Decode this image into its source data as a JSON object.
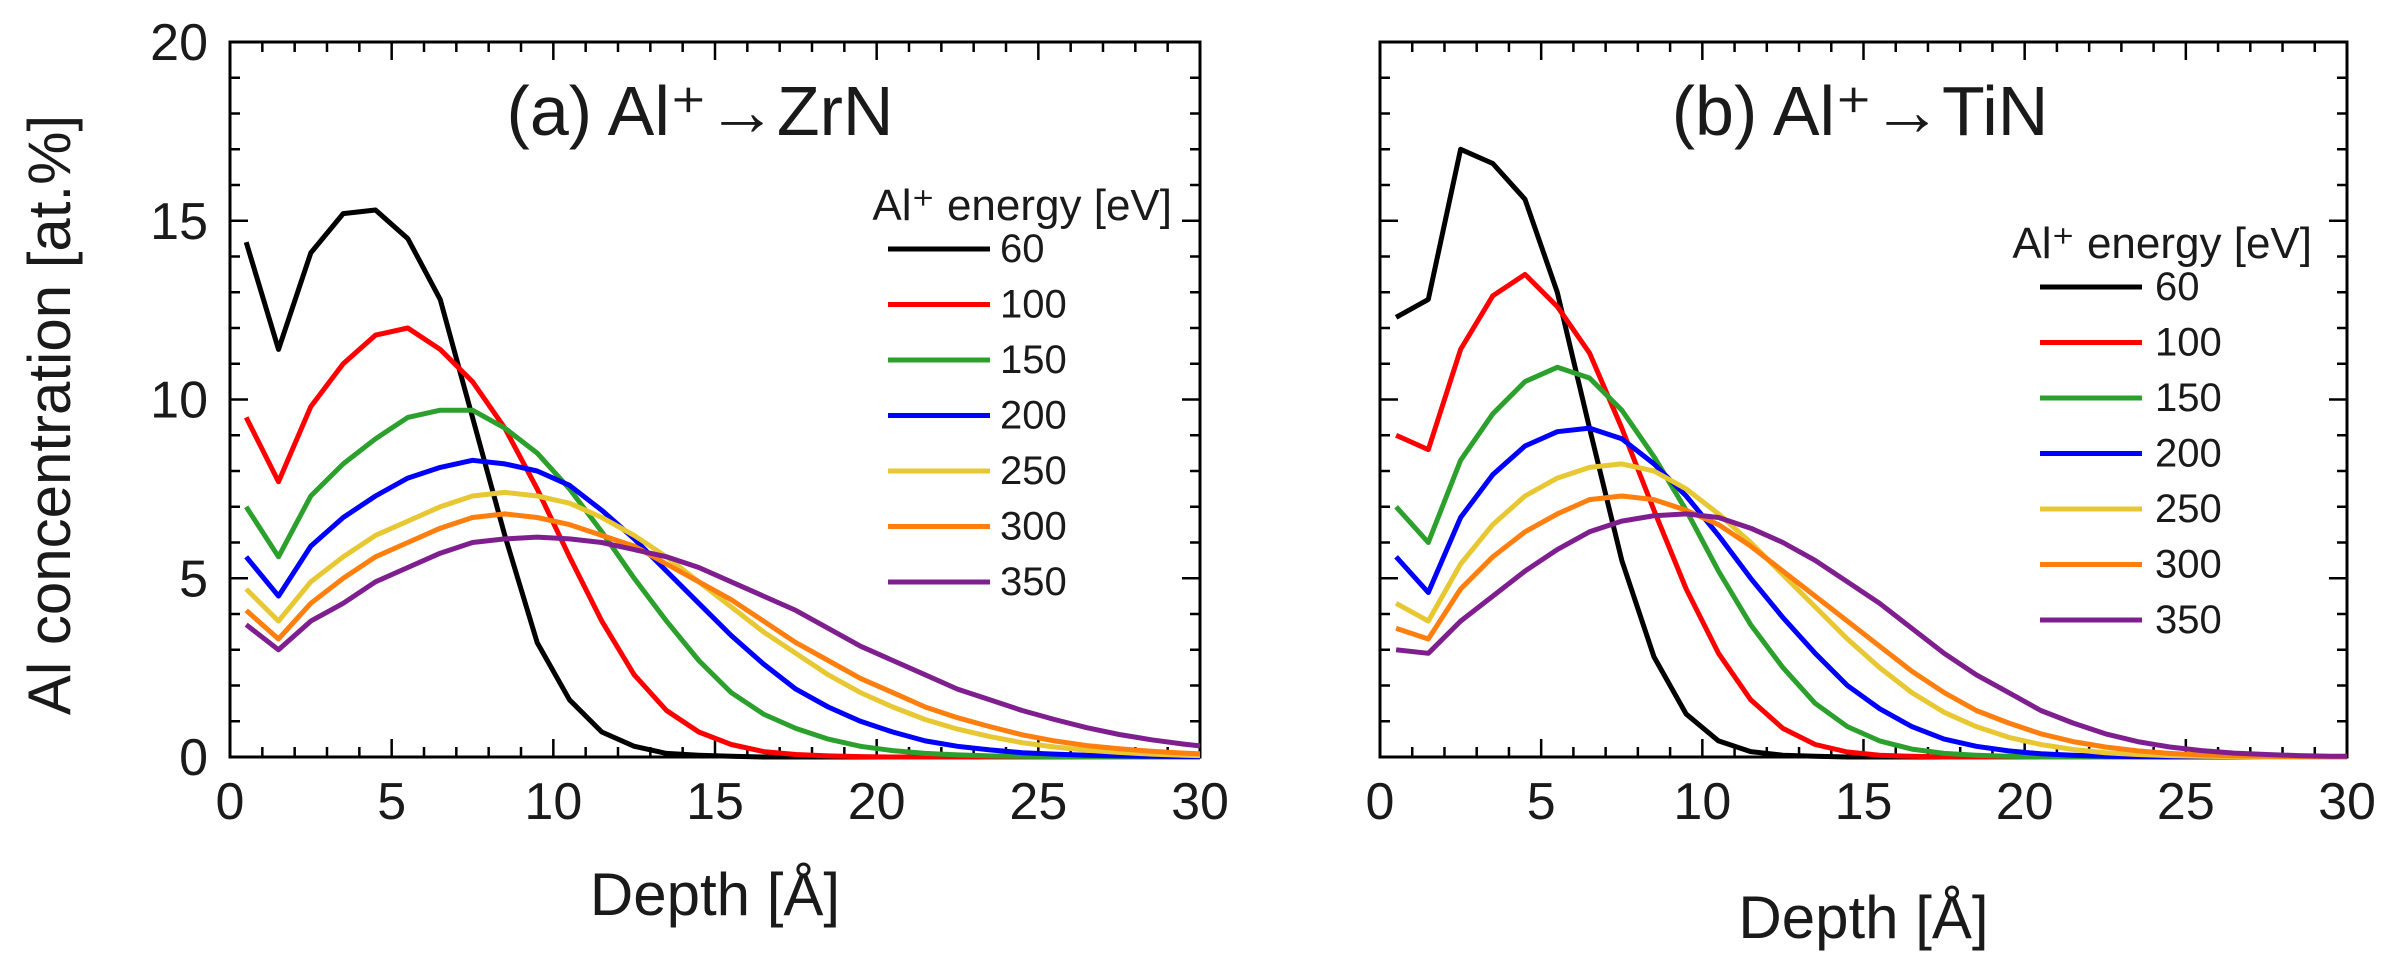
{
  "figure": {
    "ylabel": "Al concentration [at.%]",
    "xlabel": "Depth [Å]"
  },
  "chart_data": [
    {
      "type": "line",
      "title": "(a) Al⁺→ZrN",
      "xlabel": "Depth [Å]",
      "ylabel": "Al concentration [at.%]",
      "xlim": [
        0,
        30
      ],
      "ylim": [
        0,
        20
      ],
      "xticks": [
        "0",
        "5",
        "10",
        "15",
        "20",
        "25",
        "30"
      ],
      "yticks": [
        "0",
        "5",
        "10",
        "15",
        "20"
      ],
      "legend_title": "Al⁺ energy [eV]",
      "legend_position": "right",
      "x": [
        0.5,
        1.5,
        2.5,
        3.5,
        4.5,
        5.5,
        6.5,
        7.5,
        8.5,
        9.5,
        10.5,
        11.5,
        12.5,
        13.5,
        14.5,
        15.5,
        16.5,
        17.5,
        18.5,
        19.5,
        20.5,
        21.5,
        22.5,
        23.5,
        24.5,
        25.5,
        26.5,
        27.5,
        28.5,
        29.5,
        30.0
      ],
      "series": [
        {
          "name": "60",
          "color": "#000000",
          "values": [
            14.4,
            11.4,
            14.1,
            15.2,
            15.3,
            14.5,
            12.8,
            9.5,
            6.2,
            3.2,
            1.6,
            0.7,
            0.3,
            0.1,
            0.05,
            0.02,
            0,
            0,
            0,
            0,
            0,
            0,
            0,
            0,
            0,
            0,
            0,
            0,
            0,
            0,
            0
          ]
        },
        {
          "name": "100",
          "color": "#ff0000",
          "values": [
            9.5,
            7.7,
            9.8,
            11.0,
            11.8,
            12.0,
            11.4,
            10.5,
            9.2,
            7.5,
            5.6,
            3.8,
            2.3,
            1.3,
            0.7,
            0.35,
            0.15,
            0.07,
            0.03,
            0.01,
            0,
            0,
            0,
            0,
            0,
            0,
            0,
            0,
            0,
            0,
            0
          ]
        },
        {
          "name": "150",
          "color": "#2ca02c",
          "values": [
            7.0,
            5.6,
            7.3,
            8.2,
            8.9,
            9.5,
            9.7,
            9.7,
            9.2,
            8.5,
            7.5,
            6.3,
            5.0,
            3.8,
            2.7,
            1.8,
            1.2,
            0.8,
            0.5,
            0.3,
            0.18,
            0.1,
            0.06,
            0.03,
            0.02,
            0.01,
            0,
            0,
            0,
            0,
            0
          ]
        },
        {
          "name": "200",
          "color": "#0000ff",
          "values": [
            5.6,
            4.5,
            5.9,
            6.7,
            7.3,
            7.8,
            8.1,
            8.3,
            8.2,
            8.0,
            7.6,
            6.9,
            6.1,
            5.2,
            4.3,
            3.4,
            2.6,
            1.9,
            1.4,
            1.0,
            0.7,
            0.45,
            0.3,
            0.2,
            0.12,
            0.08,
            0.05,
            0.03,
            0.02,
            0.01,
            0.01
          ]
        },
        {
          "name": "250",
          "color": "#e8c832",
          "values": [
            4.7,
            3.8,
            4.9,
            5.6,
            6.2,
            6.6,
            7.0,
            7.3,
            7.4,
            7.3,
            7.1,
            6.7,
            6.2,
            5.6,
            4.9,
            4.2,
            3.5,
            2.9,
            2.3,
            1.8,
            1.4,
            1.05,
            0.78,
            0.57,
            0.4,
            0.28,
            0.19,
            0.13,
            0.08,
            0.05,
            0.04
          ]
        },
        {
          "name": "300",
          "color": "#ff7f0e",
          "values": [
            4.1,
            3.3,
            4.3,
            5.0,
            5.6,
            6.0,
            6.4,
            6.7,
            6.8,
            6.7,
            6.5,
            6.2,
            5.9,
            5.4,
            4.9,
            4.4,
            3.8,
            3.2,
            2.7,
            2.2,
            1.8,
            1.4,
            1.1,
            0.85,
            0.62,
            0.45,
            0.32,
            0.23,
            0.16,
            0.11,
            0.09
          ]
        },
        {
          "name": "350",
          "color": "#7f1f8f",
          "values": [
            3.7,
            3.0,
            3.8,
            4.3,
            4.9,
            5.3,
            5.7,
            6.0,
            6.1,
            6.15,
            6.1,
            6.0,
            5.8,
            5.6,
            5.3,
            4.9,
            4.5,
            4.1,
            3.6,
            3.1,
            2.7,
            2.3,
            1.9,
            1.6,
            1.3,
            1.05,
            0.82,
            0.63,
            0.48,
            0.36,
            0.31
          ]
        }
      ]
    },
    {
      "type": "line",
      "title": "(b) Al⁺→TiN",
      "xlabel": "Depth [Å]",
      "ylabel": "",
      "xlim": [
        0,
        30
      ],
      "ylim": [
        0,
        20
      ],
      "xticks": [
        "0",
        "5",
        "10",
        "15",
        "20",
        "25",
        "30"
      ],
      "yticks": [],
      "legend_title": "Al⁺ energy [eV]",
      "legend_position": "right",
      "x": [
        0.5,
        1.5,
        2.5,
        3.5,
        4.5,
        5.5,
        6.5,
        7.5,
        8.5,
        9.5,
        10.5,
        11.5,
        12.5,
        13.5,
        14.5,
        15.5,
        16.5,
        17.5,
        18.5,
        19.5,
        20.5,
        21.5,
        22.5,
        23.5,
        24.5,
        25.5,
        26.5,
        27.5,
        28.5,
        29.5,
        30.0
      ],
      "series": [
        {
          "name": "60",
          "color": "#000000",
          "values": [
            12.3,
            12.8,
            17.0,
            16.6,
            15.6,
            13.0,
            9.2,
            5.5,
            2.8,
            1.2,
            0.45,
            0.15,
            0.05,
            0.02,
            0,
            0,
            0,
            0,
            0,
            0,
            0,
            0,
            0,
            0,
            0,
            0,
            0,
            0,
            0,
            0,
            0
          ]
        },
        {
          "name": "100",
          "color": "#ff0000",
          "values": [
            9.0,
            8.6,
            11.4,
            12.9,
            13.5,
            12.6,
            11.3,
            9.2,
            6.9,
            4.7,
            2.9,
            1.6,
            0.8,
            0.35,
            0.14,
            0.05,
            0.02,
            0,
            0,
            0,
            0,
            0,
            0,
            0,
            0,
            0,
            0,
            0,
            0,
            0,
            0
          ]
        },
        {
          "name": "150",
          "color": "#2ca02c",
          "values": [
            7.0,
            6.0,
            8.3,
            9.6,
            10.5,
            10.9,
            10.6,
            9.7,
            8.4,
            6.9,
            5.2,
            3.7,
            2.5,
            1.5,
            0.85,
            0.45,
            0.22,
            0.1,
            0.05,
            0.02,
            0,
            0,
            0,
            0,
            0,
            0,
            0,
            0,
            0,
            0,
            0
          ]
        },
        {
          "name": "200",
          "color": "#0000ff",
          "values": [
            5.6,
            4.6,
            6.7,
            7.9,
            8.7,
            9.1,
            9.2,
            8.9,
            8.2,
            7.3,
            6.2,
            5.0,
            3.9,
            2.9,
            2.0,
            1.35,
            0.85,
            0.5,
            0.3,
            0.17,
            0.09,
            0.05,
            0.02,
            0.01,
            0,
            0,
            0,
            0,
            0,
            0,
            0
          ]
        },
        {
          "name": "250",
          "color": "#e8c832",
          "values": [
            4.3,
            3.8,
            5.4,
            6.5,
            7.3,
            7.8,
            8.1,
            8.2,
            8.0,
            7.5,
            6.8,
            6.0,
            5.1,
            4.2,
            3.3,
            2.5,
            1.8,
            1.25,
            0.85,
            0.55,
            0.35,
            0.21,
            0.12,
            0.07,
            0.04,
            0.02,
            0.01,
            0,
            0,
            0,
            0
          ]
        },
        {
          "name": "300",
          "color": "#ff7f0e",
          "values": [
            3.6,
            3.3,
            4.7,
            5.6,
            6.3,
            6.8,
            7.2,
            7.3,
            7.2,
            6.9,
            6.5,
            5.9,
            5.2,
            4.5,
            3.8,
            3.1,
            2.4,
            1.8,
            1.3,
            0.95,
            0.65,
            0.43,
            0.28,
            0.17,
            0.1,
            0.06,
            0.03,
            0.02,
            0.01,
            0,
            0
          ]
        },
        {
          "name": "350",
          "color": "#7f1f8f",
          "values": [
            3.0,
            2.9,
            3.8,
            4.5,
            5.2,
            5.8,
            6.3,
            6.6,
            6.75,
            6.8,
            6.7,
            6.4,
            6.0,
            5.5,
            4.9,
            4.3,
            3.6,
            2.9,
            2.3,
            1.8,
            1.3,
            0.95,
            0.65,
            0.43,
            0.28,
            0.18,
            0.11,
            0.07,
            0.04,
            0.02,
            0.02
          ]
        }
      ]
    }
  ]
}
